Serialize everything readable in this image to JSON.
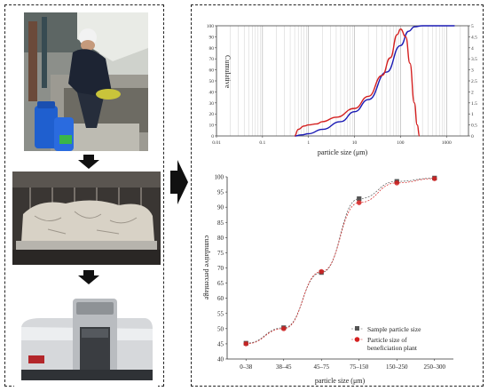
{
  "figure": {
    "colors": {
      "red": "#d42020",
      "blue": "#1a1ab4",
      "grey": "#555555",
      "dark_arrow": "#111111"
    }
  },
  "left_panel": {
    "images": [
      {
        "icon": "worker-sampling-photo"
      },
      {
        "icon": "dried-sample-tray-photo"
      },
      {
        "icon": "laser-particle-analyzer-photo",
        "label": ""
      }
    ]
  },
  "chart_data": [
    {
      "type": "line",
      "xlabel": "particle size (μm)",
      "ylabel_left": "Cumulative",
      "x_scale": "log",
      "x_ticks": [
        "0.01",
        "0.1",
        "1",
        "10",
        "100",
        "1000"
      ],
      "y_ticks_left": [
        "0",
        "10",
        "20",
        "30",
        "40",
        "50",
        "60",
        "70",
        "80",
        "90",
        "100"
      ],
      "y_ticks_right": [
        "0",
        "0.5",
        "1",
        "1.5",
        "2",
        "2.5",
        "3",
        "3.5",
        "4",
        "4.5",
        "5"
      ],
      "xlim": [
        0.01,
        3000
      ],
      "ylim_left": [
        0,
        100
      ],
      "ylim_right": [
        0,
        5
      ],
      "grid": "vertical",
      "series": [
        {
          "axis": "left",
          "color": "#1a1ab4",
          "x": [
            0.5,
            0.7,
            1,
            2,
            5,
            10,
            20,
            50,
            100,
            150,
            200,
            300,
            1500
          ],
          "y": [
            0,
            1,
            2,
            6,
            13,
            22,
            33,
            58,
            82,
            95,
            99,
            100,
            100
          ]
        },
        {
          "axis": "right",
          "color": "#d42020",
          "x": [
            0.5,
            0.6,
            0.8,
            1,
            1.5,
            2,
            4,
            10,
            20,
            40,
            60,
            85,
            100,
            130,
            160,
            200,
            230,
            260
          ],
          "y": [
            0,
            0.3,
            0.45,
            0.5,
            0.55,
            0.65,
            0.85,
            1.25,
            1.8,
            2.75,
            3.55,
            4.6,
            4.85,
            4.5,
            3.3,
            1.5,
            0.5,
            0
          ]
        }
      ]
    },
    {
      "type": "scatter",
      "xlabel": "particle size (μm)",
      "ylabel": "cumulative percentage",
      "categories": [
        "0–38",
        "38–45",
        "45–75",
        "75–150",
        "150–250",
        "250–300"
      ],
      "y_ticks": [
        "40",
        "45",
        "50",
        "55",
        "60",
        "65",
        "70",
        "75",
        "80",
        "85",
        "90",
        "95",
        "100"
      ],
      "ylim": [
        40,
        100
      ],
      "series": [
        {
          "name": "Sample particle size",
          "marker": "square",
          "color": "#555555",
          "values": [
            45.2,
            50.3,
            68.5,
            92.8,
            98.5,
            99.6
          ]
        },
        {
          "name": "Particle size of beneficiation plant",
          "marker": "circle",
          "color": "#d42020",
          "values": [
            45.0,
            50.0,
            68.8,
            91.5,
            98.0,
            99.4
          ]
        }
      ]
    }
  ]
}
